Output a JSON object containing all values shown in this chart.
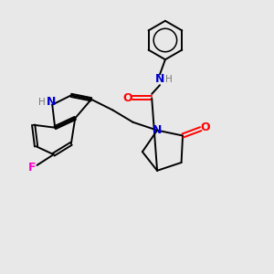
{
  "bg_color": "#e8e8e8",
  "bond_color": "#000000",
  "atom_colors": {
    "N": "#0000cd",
    "O": "#ff0000",
    "F": "#ff00cc",
    "H": "#777777"
  }
}
